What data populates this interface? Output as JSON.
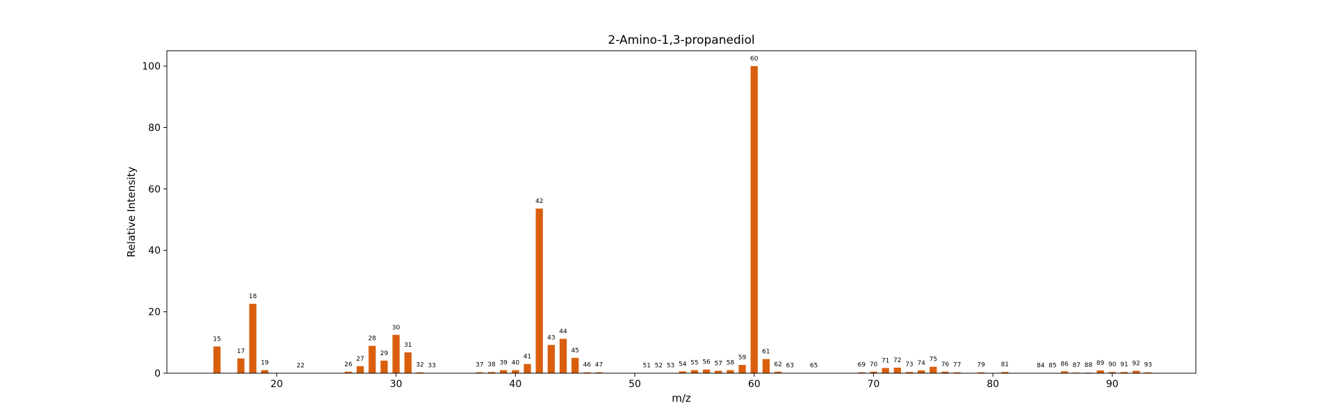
{
  "chart_data": {
    "type": "bar",
    "title": "2-Amino-1,3-propanediol",
    "xlabel": "m/z",
    "ylabel": "Relative Intensity",
    "xlim": [
      10.8,
      97
    ],
    "ylim": [
      0,
      105
    ],
    "xticks": [
      20,
      30,
      40,
      50,
      60,
      70,
      80,
      90
    ],
    "yticks": [
      0,
      20,
      40,
      60,
      80,
      100
    ],
    "bar_color": "#d95f0e",
    "x": [
      15,
      17,
      18,
      19,
      22,
      26,
      27,
      28,
      29,
      30,
      31,
      32,
      33,
      37,
      38,
      39,
      40,
      41,
      42,
      43,
      44,
      45,
      46,
      47,
      51,
      52,
      53,
      54,
      55,
      56,
      57,
      58,
      59,
      60,
      61,
      62,
      63,
      65,
      69,
      70,
      71,
      72,
      73,
      74,
      75,
      76,
      77,
      79,
      81,
      84,
      85,
      86,
      87,
      88,
      89,
      90,
      91,
      92,
      93
    ],
    "values": [
      8.7,
      4.8,
      22.6,
      1.0,
      0.1,
      0.5,
      2.3,
      8.9,
      4.1,
      12.5,
      6.8,
      0.3,
      0.1,
      0.3,
      0.4,
      1.0,
      1.0,
      3.0,
      53.6,
      9.2,
      11.2,
      5.0,
      0.3,
      0.3,
      0.1,
      0.1,
      0.1,
      0.6,
      1.0,
      1.2,
      0.8,
      1.0,
      2.7,
      100.0,
      4.6,
      0.5,
      0.1,
      0.1,
      0.3,
      0.5,
      1.7,
      1.8,
      0.4,
      0.9,
      2.1,
      0.5,
      0.3,
      0.3,
      0.4,
      0.1,
      0.1,
      0.6,
      0.2,
      0.2,
      0.9,
      0.4,
      0.4,
      0.8,
      0.3
    ],
    "labels": [
      "15",
      "17",
      "18",
      "19",
      "22",
      "26",
      "27",
      "28",
      "29",
      "30",
      "31",
      "32",
      "33",
      "37",
      "38",
      "39",
      "40",
      "41",
      "42",
      "43",
      "44",
      "45",
      "46",
      "47",
      "51",
      "52",
      "53",
      "54",
      "55",
      "56",
      "57",
      "58",
      "59",
      "60",
      "61",
      "62",
      "63",
      "65",
      "69",
      "70",
      "71",
      "72",
      "73",
      "74",
      "75",
      "76",
      "77",
      "79",
      "81",
      "84",
      "85",
      "86",
      "87",
      "88",
      "89",
      "90",
      "91",
      "92",
      "93"
    ]
  }
}
